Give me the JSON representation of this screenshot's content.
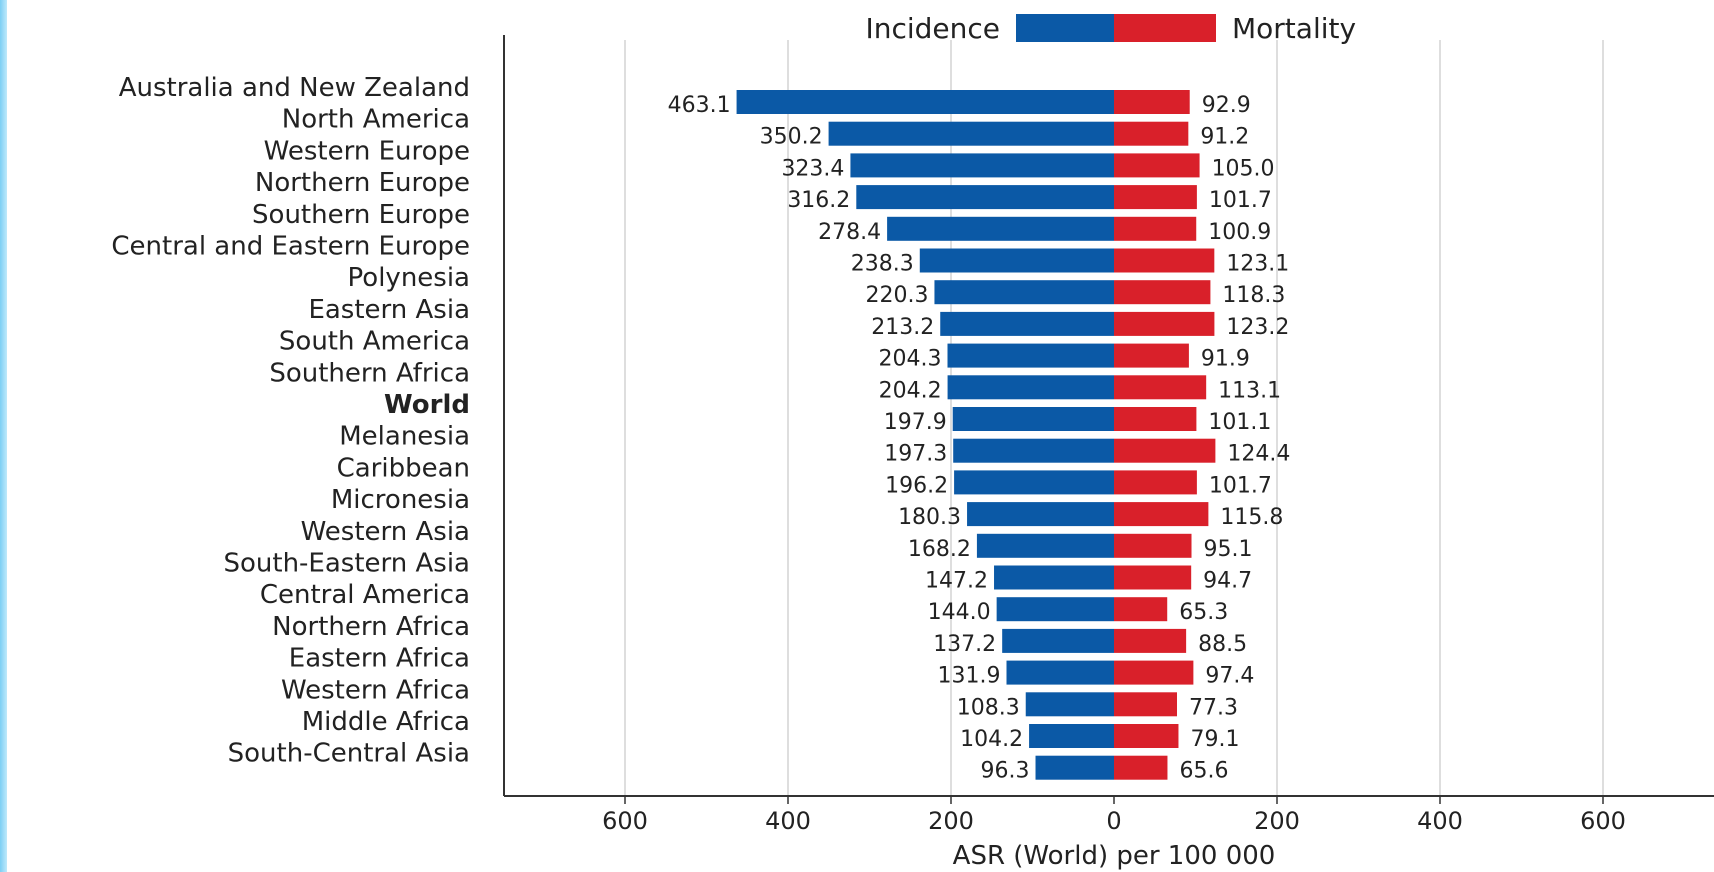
{
  "chart_data": {
    "type": "bar",
    "orientation": "horizontal-butterfly",
    "xlabel": "ASR (World) per 100 000",
    "x_ticks": [
      "600",
      "400",
      "200",
      "0",
      "200",
      "400",
      "600"
    ],
    "xlim": [
      -750,
      750
    ],
    "grid": true,
    "legend_position": "top-center",
    "categories": [
      "Australia and New Zealand",
      "North America",
      "Western Europe",
      "Northern Europe",
      "Southern Europe",
      "Central and Eastern Europe",
      "Polynesia",
      "Eastern Asia",
      "South America",
      "Southern Africa",
      "World",
      "Melanesia",
      "Caribbean",
      "Micronesia",
      "Western Asia",
      "South-Eastern Asia",
      "Central America",
      "Northern Africa",
      "Eastern Africa",
      "Western Africa",
      "Middle Africa",
      "South-Central Asia"
    ],
    "highlight_category": "World",
    "series": [
      {
        "name": "Incidence",
        "color": "#0b59a6",
        "side": "left",
        "values": [
          463.1,
          350.2,
          323.4,
          316.2,
          278.4,
          238.3,
          220.3,
          213.2,
          204.3,
          204.2,
          197.9,
          197.3,
          196.2,
          180.3,
          168.2,
          147.2,
          144.0,
          137.2,
          131.9,
          108.3,
          104.2,
          96.3
        ],
        "labels": [
          "463.1",
          "350.2",
          "323.4",
          "316.2",
          "278.4",
          "238.3",
          "220.3",
          "213.2",
          "204.3",
          "204.2",
          "197.9",
          "197.3",
          "196.2",
          "180.3",
          "168.2",
          "147.2",
          "144.0",
          "137.2",
          "131.9",
          "108.3",
          "104.2",
          "96.3"
        ]
      },
      {
        "name": "Mortality",
        "color": "#d9202a",
        "side": "right",
        "values": [
          92.9,
          91.2,
          105.0,
          101.7,
          100.9,
          123.1,
          118.3,
          123.2,
          91.9,
          113.1,
          101.1,
          124.4,
          101.7,
          115.8,
          95.1,
          94.7,
          65.3,
          88.5,
          97.4,
          77.3,
          79.1,
          65.6
        ],
        "labels": [
          "92.9",
          "91.2",
          "105.0",
          "101.7",
          "100.9",
          "123.1",
          "118.3",
          "123.2",
          "91.9",
          "113.1",
          "101.1",
          "124.4",
          "101.7",
          "115.8",
          "95.1",
          "94.7",
          "65.3",
          "88.5",
          "97.4",
          "77.3",
          "79.1",
          "65.6"
        ]
      }
    ]
  }
}
